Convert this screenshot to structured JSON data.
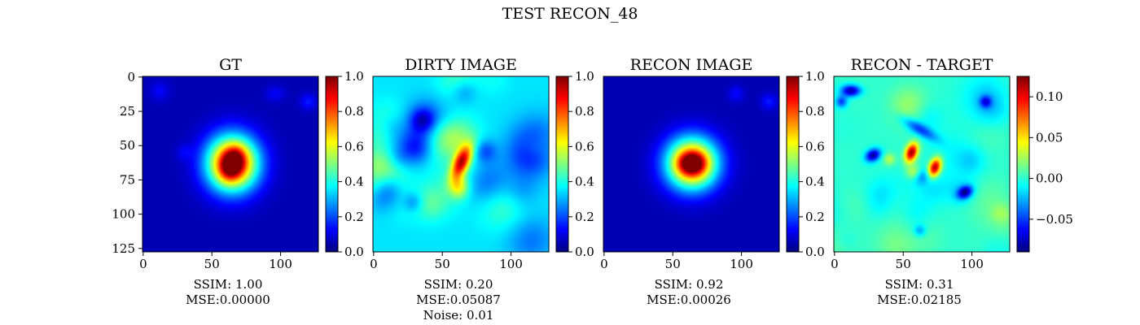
{
  "figure": {
    "title": "TEST RECON_48"
  },
  "panels": [
    {
      "id": "gt",
      "title": "GT",
      "show_yticks": true,
      "caption": [
        "SSIM: 1.00",
        "MSE:0.00000"
      ],
      "blobs": [
        {
          "cx": 65,
          "cy": 63,
          "sx": 13,
          "sy": 14,
          "rot": 0,
          "amp": 0.9
        },
        {
          "cx": 65,
          "cy": 63,
          "sx": 5,
          "sy": 7,
          "rot": 20,
          "amp": 0.4
        },
        {
          "cx": 12,
          "cy": 10,
          "sx": 5,
          "sy": 5,
          "rot": 0,
          "amp": 0.07
        },
        {
          "cx": 96,
          "cy": 12,
          "sx": 5,
          "sy": 4,
          "rot": 0,
          "amp": 0.07
        },
        {
          "cx": 120,
          "cy": 18,
          "sx": 4,
          "sy": 4,
          "rot": 0,
          "amp": 0.1
        },
        {
          "cx": 30,
          "cy": 55,
          "sx": 4,
          "sy": 4,
          "rot": 0,
          "amp": 0.06
        }
      ],
      "base": 0.05
    },
    {
      "id": "dirty",
      "title": "DIRTY IMAGE",
      "show_yticks": false,
      "caption": [
        "SSIM: 0.20",
        "MSE:0.05087",
        "Noise: 0.01"
      ],
      "blobs": [
        {
          "cx": 64,
          "cy": 62,
          "sx": 4,
          "sy": 9,
          "rot": 25,
          "amp": 0.55
        },
        {
          "cx": 62,
          "cy": 80,
          "sx": 5,
          "sy": 6,
          "rot": 0,
          "amp": 0.25
        }
      ],
      "base": 0.35,
      "noise": 0.2
    },
    {
      "id": "recon",
      "title": "RECON IMAGE",
      "show_yticks": false,
      "caption": [
        "SSIM: 0.92",
        "MSE:0.00026"
      ],
      "blobs": [
        {
          "cx": 64,
          "cy": 63,
          "sx": 13,
          "sy": 13,
          "rot": 0,
          "amp": 0.85
        },
        {
          "cx": 64,
          "cy": 63,
          "sx": 6,
          "sy": 5,
          "rot": 0,
          "amp": 0.4
        },
        {
          "cx": 96,
          "cy": 12,
          "sx": 4,
          "sy": 4,
          "rot": 0,
          "amp": 0.08
        },
        {
          "cx": 120,
          "cy": 18,
          "sx": 4,
          "sy": 4,
          "rot": 0,
          "amp": 0.1
        }
      ],
      "base": 0.05
    },
    {
      "id": "diff",
      "title": "RECON - TARGET",
      "show_yticks": false,
      "caption": [
        "SSIM: 0.31",
        "MSE:0.02185"
      ],
      "blobs": [
        {
          "cx": 56,
          "cy": 55,
          "sx": 3,
          "sy": 5,
          "rot": 20,
          "amp": 0.12
        },
        {
          "cx": 73,
          "cy": 66,
          "sx": 3,
          "sy": 5,
          "rot": 20,
          "amp": 0.12
        },
        {
          "cx": 28,
          "cy": 57,
          "sx": 4,
          "sy": 3,
          "rot": -30,
          "amp": -0.085
        },
        {
          "cx": 12,
          "cy": 10,
          "sx": 5,
          "sy": 3,
          "rot": 0,
          "amp": -0.085
        },
        {
          "cx": 95,
          "cy": 84,
          "sx": 4,
          "sy": 3,
          "rot": -30,
          "amp": -0.08
        },
        {
          "cx": 62,
          "cy": 38,
          "sx": 10,
          "sy": 3,
          "rot": 30,
          "amp": -0.05
        },
        {
          "cx": 62,
          "cy": 72,
          "sx": 5,
          "sy": 4,
          "rot": 0,
          "amp": -0.04
        },
        {
          "cx": 58,
          "cy": 70,
          "sx": 4,
          "sy": 4,
          "rot": 0,
          "amp": 0.05
        },
        {
          "cx": 110,
          "cy": 18,
          "sx": 3,
          "sy": 3,
          "rot": 0,
          "amp": -0.05
        },
        {
          "cx": 5,
          "cy": 18,
          "sx": 3,
          "sy": 3,
          "rot": 0,
          "amp": -0.05
        },
        {
          "cx": 62,
          "cy": 112,
          "sx": 3,
          "sy": 3,
          "rot": 0,
          "amp": -0.03
        },
        {
          "cx": 40,
          "cy": 60,
          "sx": 3,
          "sy": 3,
          "rot": 0,
          "amp": 0.03
        }
      ],
      "base": 0.0,
      "noise": 0.015
    }
  ],
  "chart_data": [
    {
      "type": "heatmap",
      "title": "GT",
      "colormap": "jet",
      "image_size": [
        128,
        128
      ],
      "x_ticks": [
        0,
        50,
        100
      ],
      "y_ticks": [
        0,
        25,
        50,
        75,
        100,
        125
      ],
      "colorbar": {
        "range": [
          0.0,
          1.0
        ],
        "ticks": [
          0.0,
          0.2,
          0.4,
          0.6,
          0.8,
          1.0
        ],
        "tick_labels": [
          "0.0",
          "0.2",
          "0.4",
          "0.6",
          "0.8",
          "1.0"
        ]
      },
      "annotations": [
        "SSIM: 1.00",
        "MSE:0.00000"
      ]
    },
    {
      "type": "heatmap",
      "title": "DIRTY IMAGE",
      "colormap": "jet",
      "image_size": [
        128,
        128
      ],
      "x_ticks": [
        0,
        50,
        100
      ],
      "colorbar": {
        "range": [
          0.0,
          1.0
        ],
        "ticks": [
          0.0,
          0.2,
          0.4,
          0.6,
          0.8,
          1.0
        ],
        "tick_labels": [
          "0.0",
          "0.2",
          "0.4",
          "0.6",
          "0.8",
          "1.0"
        ]
      },
      "annotations": [
        "SSIM: 0.20",
        "MSE:0.05087",
        "Noise: 0.01"
      ]
    },
    {
      "type": "heatmap",
      "title": "RECON IMAGE",
      "colormap": "jet",
      "image_size": [
        128,
        128
      ],
      "x_ticks": [
        0,
        50,
        100
      ],
      "colorbar": {
        "range": [
          0.0,
          1.0
        ],
        "ticks": [
          0.0,
          0.2,
          0.4,
          0.6,
          0.8,
          1.0
        ],
        "tick_labels": [
          "0.0",
          "0.2",
          "0.4",
          "0.6",
          "0.8",
          "1.0"
        ]
      },
      "annotations": [
        "SSIM: 0.92",
        "MSE:0.00026"
      ]
    },
    {
      "type": "heatmap",
      "title": "RECON - TARGET",
      "colormap": "jet",
      "image_size": [
        128,
        128
      ],
      "x_ticks": [
        0,
        50,
        100
      ],
      "colorbar": {
        "range": [
          -0.09,
          0.125
        ],
        "ticks": [
          -0.05,
          0.0,
          0.05,
          0.1
        ],
        "tick_labels": [
          "−0.05",
          "0.00",
          "0.05",
          "0.10"
        ]
      },
      "annotations": [
        "SSIM: 0.31",
        "MSE:0.02185"
      ]
    }
  ]
}
